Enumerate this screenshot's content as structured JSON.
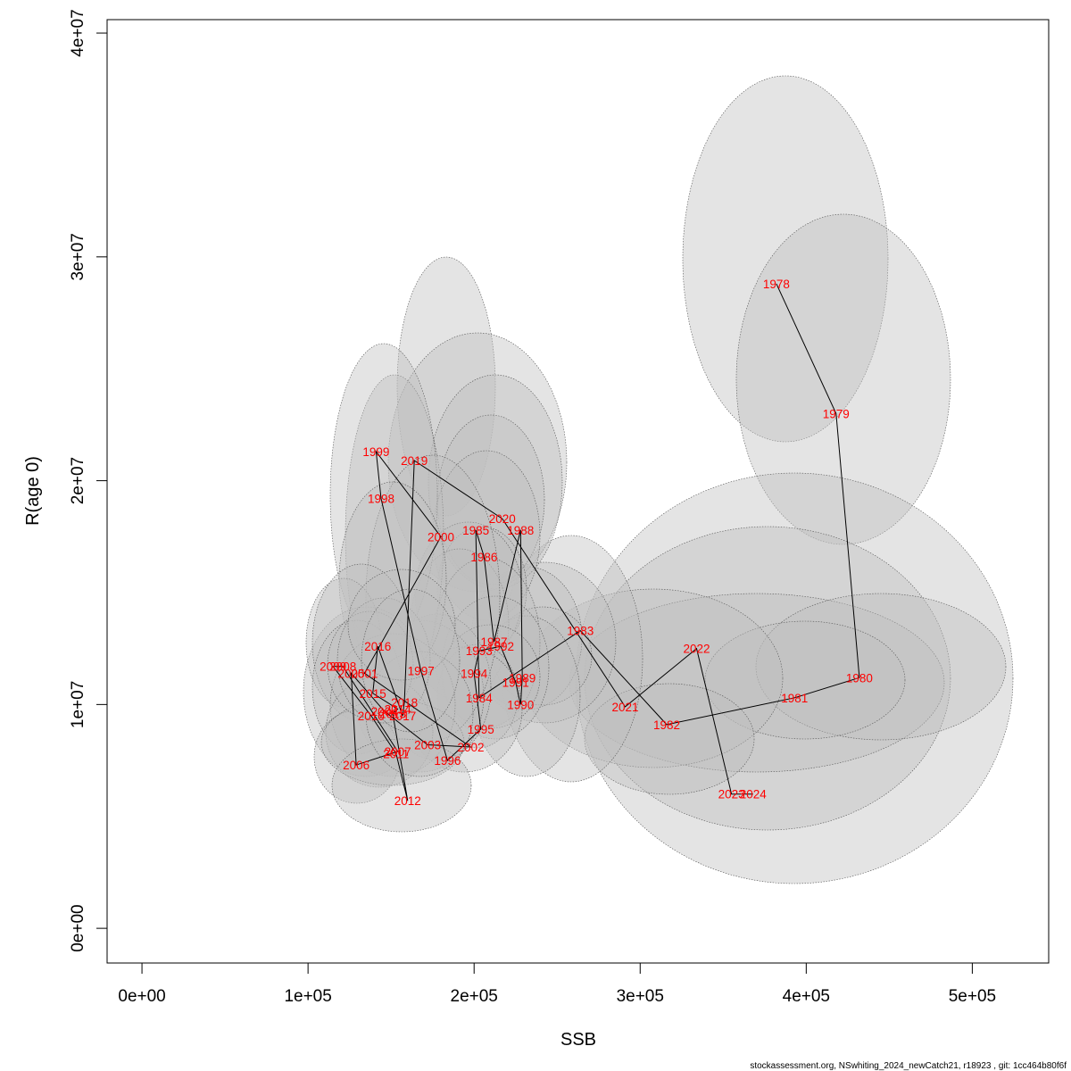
{
  "chart_data": {
    "type": "scatter",
    "title": "",
    "xlabel": "SSB",
    "ylabel": "R(age 0)",
    "xlim": [
      -21000,
      546000
    ],
    "ylim": [
      -1550000,
      40600000
    ],
    "x_ticks": [
      {
        "value": 0,
        "label": "0e+00"
      },
      {
        "value": 100000,
        "label": "1e+05"
      },
      {
        "value": 200000,
        "label": "2e+05"
      },
      {
        "value": 300000,
        "label": "3e+05"
      },
      {
        "value": 400000,
        "label": "4e+05"
      },
      {
        "value": 500000,
        "label": "5e+05"
      }
    ],
    "y_ticks": [
      {
        "value": 0,
        "label": "0e+00"
      },
      {
        "value": 10000000,
        "label": "1e+07"
      },
      {
        "value": 20000000,
        "label": "2e+07"
      },
      {
        "value": 30000000,
        "label": "3e+07"
      },
      {
        "value": 40000000,
        "label": "4e+07"
      }
    ],
    "points": [
      {
        "year": "1978",
        "ssb": 382000,
        "rec": 28800000
      },
      {
        "year": "1979",
        "ssb": 418000,
        "rec": 23000000
      },
      {
        "year": "1980",
        "ssb": 432000,
        "rec": 11200000
      },
      {
        "year": "1981",
        "ssb": 393000,
        "rec": 10300000
      },
      {
        "year": "1982",
        "ssb": 316000,
        "rec": 9100000
      },
      {
        "year": "1983",
        "ssb": 264000,
        "rec": 13300000
      },
      {
        "year": "1984",
        "ssb": 203000,
        "rec": 10300000
      },
      {
        "year": "1985",
        "ssb": 201000,
        "rec": 17800000
      },
      {
        "year": "1986",
        "ssb": 206000,
        "rec": 16600000
      },
      {
        "year": "1987",
        "ssb": 212000,
        "rec": 12800000
      },
      {
        "year": "1988",
        "ssb": 228000,
        "rec": 17800000
      },
      {
        "year": "1989",
        "ssb": 229000,
        "rec": 11200000
      },
      {
        "year": "1990",
        "ssb": 228000,
        "rec": 10000000
      },
      {
        "year": "1991",
        "ssb": 225000,
        "rec": 11000000
      },
      {
        "year": "1992",
        "ssb": 216000,
        "rec": 12600000
      },
      {
        "year": "1993",
        "ssb": 203000,
        "rec": 12400000
      },
      {
        "year": "1994",
        "ssb": 200000,
        "rec": 11400000
      },
      {
        "year": "1995",
        "ssb": 204000,
        "rec": 8900000
      },
      {
        "year": "1996",
        "ssb": 184000,
        "rec": 7500000
      },
      {
        "year": "1997",
        "ssb": 168000,
        "rec": 11500000
      },
      {
        "year": "1998",
        "ssb": 144000,
        "rec": 19200000
      },
      {
        "year": "1999",
        "ssb": 141000,
        "rec": 21300000
      },
      {
        "year": "2000",
        "ssb": 180000,
        "rec": 17500000
      },
      {
        "year": "2001",
        "ssb": 134000,
        "rec": 11400000
      },
      {
        "year": "2002",
        "ssb": 198000,
        "rec": 8100000
      },
      {
        "year": "2003",
        "ssb": 172000,
        "rec": 8200000
      },
      {
        "year": "2004",
        "ssb": 146000,
        "rec": 9700000
      },
      {
        "year": "2005",
        "ssb": 126000,
        "rec": 11400000
      },
      {
        "year": "2006",
        "ssb": 129000,
        "rec": 7300000
      },
      {
        "year": "2007",
        "ssb": 154000,
        "rec": 7900000
      },
      {
        "year": "2008",
        "ssb": 121000,
        "rec": 11700000
      },
      {
        "year": "2009",
        "ssb": 115000,
        "rec": 11700000
      },
      {
        "year": "2010",
        "ssb": 138000,
        "rec": 9500000
      },
      {
        "year": "2011",
        "ssb": 153000,
        "rec": 7800000
      },
      {
        "year": "2012",
        "ssb": 160000,
        "rec": 5700000
      },
      {
        "year": "2013",
        "ssb": 151000,
        "rec": 9600000
      },
      {
        "year": "2014",
        "ssb": 154000,
        "rec": 9800000
      },
      {
        "year": "2015",
        "ssb": 139000,
        "rec": 10500000
      },
      {
        "year": "2016",
        "ssb": 142000,
        "rec": 12600000
      },
      {
        "year": "2017",
        "ssb": 157000,
        "rec": 9500000
      },
      {
        "year": "2018",
        "ssb": 158000,
        "rec": 10100000
      },
      {
        "year": "2019",
        "ssb": 164000,
        "rec": 20900000
      },
      {
        "year": "2020",
        "ssb": 217000,
        "rec": 18300000
      },
      {
        "year": "2021",
        "ssb": 291000,
        "rec": 9900000
      },
      {
        "year": "2022",
        "ssb": 334000,
        "rec": 12500000
      },
      {
        "year": "2023",
        "ssb": 355000,
        "rec": 6000000
      },
      {
        "year": "2024",
        "ssb": 368000,
        "rec": 6000000
      }
    ],
    "grid": false,
    "legend": "none"
  },
  "footer": "stockassessment.org, NSwhiting_2024_newCatch21, r18923 , git: 1cc464b80f6f",
  "colors": {
    "label": "#ff0000",
    "ellipse_fill": "#bebebe",
    "ellipse_stroke": "#555555",
    "line": "#000000",
    "axis": "#000000"
  }
}
